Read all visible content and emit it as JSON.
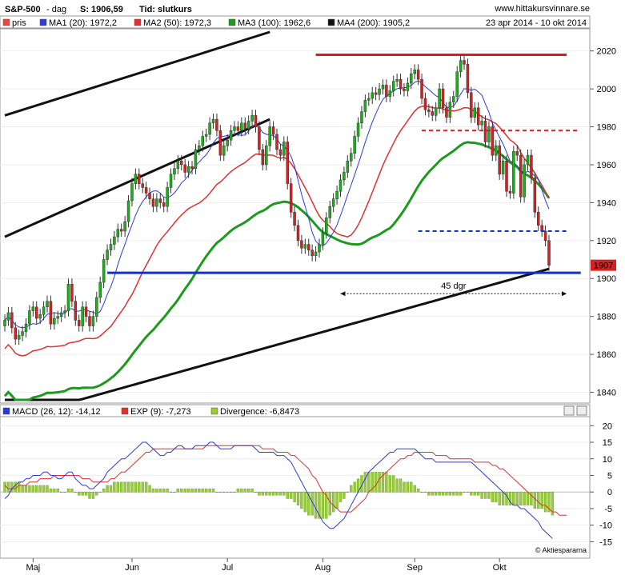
{
  "header": {
    "symbol": "S&P-500",
    "period": "- dag",
    "close_label": "S: 1906,59",
    "time_label": "Tid: slutkurs",
    "site": "www.hittakursvinnare.se",
    "date_range": "23 apr 2014 - 10 okt 2014"
  },
  "legend_main": [
    {
      "label": "pris",
      "color": "#e8473f"
    },
    {
      "label": "MA1 (20): 1972,2",
      "color": "#2a3bd6"
    },
    {
      "label": "MA2 (50): 1972,3",
      "color": "#e03030"
    },
    {
      "label": "MA3 (100): 1962,6",
      "color": "#1d9a1d"
    },
    {
      "label": "MA4 (200): 1905,2",
      "color": "#111111"
    }
  ],
  "legend_macd": [
    {
      "label": "MACD (26, 12): -14,12",
      "color": "#2a3bd6"
    },
    {
      "label": "EXP (9): -7,273",
      "color": "#e03030"
    },
    {
      "label": "Divergence: -6,8473",
      "color": "#9acd32"
    }
  ],
  "price_badge": "1907",
  "annotation": "45 dgr",
  "watermark": "© Aktiespararna",
  "chart_data": [
    {
      "type": "candlestick",
      "title": "S&P-500 - dag",
      "ylim": [
        1836,
        2030
      ],
      "y_ticks": [
        1840,
        1860,
        1880,
        1900,
        1920,
        1940,
        1960,
        1980,
        2000,
        2020
      ],
      "x_ticks": [
        "Maj",
        "Jun",
        "Jul",
        "Aug",
        "Sep",
        "Okt"
      ],
      "x_tick_index": [
        8,
        36,
        63,
        90,
        116,
        140
      ],
      "n_days": 155,
      "closes": [
        1878,
        1882,
        1874,
        1868,
        1870,
        1872,
        1876,
        1883,
        1885,
        1879,
        1881,
        1885,
        1888,
        1876,
        1879,
        1880,
        1882,
        1883,
        1897,
        1888,
        1878,
        1875,
        1885,
        1880,
        1875,
        1880,
        1890,
        1898,
        1910,
        1915,
        1918,
        1922,
        1926,
        1925,
        1930,
        1941,
        1950,
        1955,
        1950,
        1948,
        1945,
        1942,
        1938,
        1942,
        1940,
        1938,
        1948,
        1955,
        1958,
        1962,
        1960,
        1956,
        1959,
        1958,
        1968,
        1970,
        1975,
        1976,
        1982,
        1984,
        1978,
        1965,
        1970,
        1973,
        1978,
        1980,
        1978,
        1982,
        1979,
        1983,
        1986,
        1980,
        1968,
        1960,
        1970,
        1980,
        1976,
        1968,
        1965,
        1972,
        1950,
        1935,
        1928,
        1920,
        1916,
        1918,
        1915,
        1912,
        1914,
        1918,
        1924,
        1932,
        1938,
        1942,
        1946,
        1952,
        1956,
        1962,
        1966,
        1975,
        1982,
        1988,
        1994,
        1995,
        1998,
        1997,
        2000,
        2002,
        1996,
        1999,
        2004,
        2005,
        2000,
        1999,
        2003,
        2008,
        2010,
        2005,
        1995,
        1989,
        1988,
        1986,
        1990,
        2000,
        1990,
        1985,
        1993,
        1996,
        2009,
        2015,
        2013,
        1998,
        1985,
        1990,
        1981,
        1983,
        1972,
        1980,
        1965,
        1970,
        1955,
        1962,
        1946,
        1945,
        1967,
        1965,
        1943,
        1960,
        1965,
        1953,
        1935,
        1928,
        1925,
        1920,
        1907
      ],
      "horizontal_levels": [
        {
          "y": 1903,
          "color": "#1530c8",
          "style": "solid",
          "x_from": 29,
          "x_to": 163
        },
        {
          "y": 2018,
          "color": "#dd1a1a",
          "style": "solid",
          "x_from": 88,
          "x_to": 159
        },
        {
          "y": 1978,
          "color": "#dd1a1a",
          "style": "dashed",
          "x_from": 118,
          "x_to": 162
        },
        {
          "y": 1925,
          "color": "#1530c8",
          "style": "dashed",
          "x_from": 117,
          "x_to": 159
        }
      ],
      "trend_channel": [
        {
          "from": [
            0,
            1986
          ],
          "to": [
            75,
            2030
          ]
        },
        {
          "from": [
            0,
            1922
          ],
          "to": [
            75,
            1984
          ]
        }
      ],
      "span_arrow": {
        "x_from": 95,
        "x_to": 159,
        "y": 1892,
        "label": "45 dgr"
      },
      "last_price": 1907
    },
    {
      "type": "line+bar",
      "title": "MACD",
      "ylim": [
        -19,
        22
      ],
      "y_ticks": [
        -15,
        -10,
        -5,
        0,
        5,
        10,
        15,
        20
      ],
      "series": [
        {
          "name": "MACD (26, 12)",
          "values": [
            -2,
            -1,
            1,
            2,
            3,
            3,
            4,
            4,
            5,
            5,
            5,
            6,
            6,
            5,
            5,
            4,
            4,
            5,
            6,
            6,
            4,
            3,
            2,
            2,
            1,
            1,
            2,
            3,
            4,
            6,
            7,
            8,
            9,
            10,
            10,
            11,
            12,
            13,
            14,
            15,
            15,
            14,
            13,
            12,
            11,
            11,
            12,
            12,
            13,
            14,
            14,
            13,
            13,
            13,
            14,
            14,
            14,
            14,
            15,
            15,
            14,
            13,
            13,
            13,
            13,
            14,
            14,
            14,
            14,
            14,
            14,
            13,
            12,
            12,
            12,
            12,
            12,
            11,
            11,
            11,
            10,
            9,
            7,
            5,
            3,
            1,
            -1,
            -3,
            -5,
            -7,
            -9,
            -10,
            -11,
            -11,
            -10,
            -9,
            -8,
            -6,
            -4,
            -2,
            0,
            2,
            4,
            6,
            7,
            8,
            9,
            10,
            11,
            12,
            12,
            13,
            13,
            13,
            13,
            13,
            13,
            12,
            11,
            10,
            10,
            10,
            9,
            9,
            9,
            9,
            9,
            9,
            9,
            9,
            9,
            9,
            9,
            8,
            7,
            6,
            5,
            4,
            3,
            2,
            1,
            0,
            -1,
            -3,
            -4,
            -4,
            -5,
            -5,
            -6,
            -7,
            -8,
            -9,
            -11,
            -12,
            -13,
            -14
          ]
        },
        {
          "name": "EXP (9)",
          "values": [
            2,
            1,
            1,
            1,
            2,
            2,
            2,
            3,
            3,
            3,
            4,
            4,
            4,
            4,
            5,
            5,
            5,
            5,
            5,
            5,
            5,
            5,
            4,
            4,
            4,
            3,
            3,
            3,
            3,
            3,
            4,
            4,
            5,
            6,
            6,
            7,
            8,
            9,
            10,
            11,
            12,
            12,
            13,
            13,
            13,
            13,
            13,
            13,
            13,
            13,
            13,
            13,
            13,
            13,
            13,
            13,
            13,
            14,
            14,
            14,
            14,
            14,
            14,
            14,
            14,
            14,
            14,
            14,
            14,
            14,
            14,
            14,
            14,
            13,
            13,
            13,
            13,
            12,
            12,
            12,
            12,
            11,
            11,
            10,
            9,
            8,
            7,
            5,
            4,
            2,
            0,
            -1,
            -3,
            -4,
            -5,
            -6,
            -6,
            -6,
            -6,
            -5,
            -4,
            -3,
            -2,
            0,
            1,
            2,
            4,
            5,
            6,
            7,
            8,
            9,
            10,
            10,
            11,
            11,
            12,
            12,
            12,
            12,
            12,
            12,
            11,
            11,
            11,
            11,
            10,
            10,
            10,
            10,
            10,
            10,
            10,
            9,
            9,
            9,
            9,
            9,
            8,
            8,
            7,
            7,
            6,
            5,
            4,
            3,
            2,
            1,
            0,
            -1,
            -2,
            -3,
            -4,
            -4,
            -5,
            -6,
            -6,
            -7,
            -7,
            -7
          ]
        },
        {
          "name": "Divergence",
          "values": [
            3,
            3,
            3,
            3,
            3,
            2,
            2,
            2,
            2,
            2,
            2,
            2,
            2,
            1,
            1,
            1,
            0,
            0,
            1,
            1,
            0,
            -1,
            -1,
            -1,
            -2,
            -2,
            -1,
            0,
            1,
            2,
            2,
            3,
            3,
            3,
            3,
            3,
            3,
            3,
            3,
            3,
            3,
            2,
            1,
            1,
            1,
            1,
            1,
            0,
            0,
            1,
            1,
            1,
            1,
            1,
            1,
            1,
            1,
            1,
            1,
            1,
            0,
            0,
            0,
            0,
            0,
            0,
            1,
            1,
            1,
            1,
            1,
            0,
            -1,
            -1,
            -1,
            -1,
            -1,
            -1,
            -1,
            -1,
            -2,
            -2,
            -3,
            -4,
            -5,
            -6,
            -7,
            -7,
            -8,
            -8,
            -8,
            -8,
            -7,
            -6,
            -5,
            -3,
            -2,
            0,
            2,
            3,
            4,
            5,
            6,
            6,
            6,
            6,
            6,
            6,
            6,
            5,
            5,
            4,
            4,
            3,
            3,
            3,
            2,
            1,
            0,
            0,
            -1,
            -1,
            -1,
            -1,
            -1,
            -1,
            -1,
            -1,
            -1,
            -1,
            0,
            0,
            -1,
            -1,
            -1,
            -2,
            -2,
            -2,
            -3,
            -3,
            -4,
            -4,
            -4,
            -4,
            -4,
            -4,
            -4,
            -4,
            -4,
            -4,
            -5,
            -5,
            -5,
            -6,
            -6,
            -7
          ]
        }
      ]
    }
  ],
  "colors": {
    "up_candle": "#18b218",
    "down_candle": "#d72020",
    "ma1": "#2a3bd6",
    "ma2": "#e03030",
    "ma3": "#1d9a1d",
    "ma4": "#111111",
    "badge_bg": "#d72020"
  }
}
